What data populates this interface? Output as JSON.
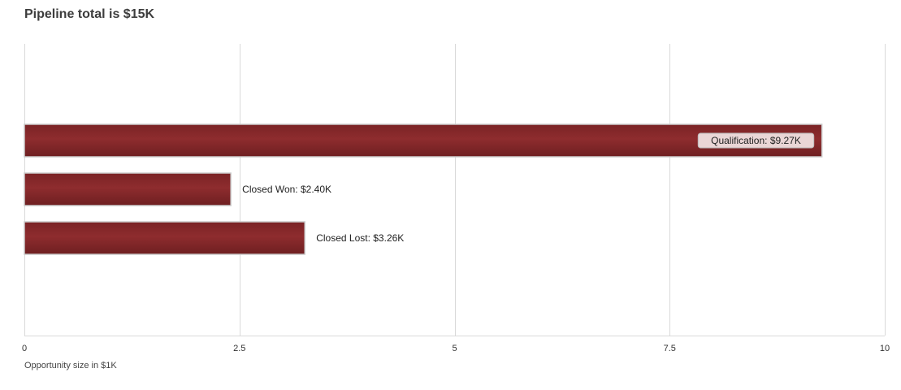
{
  "chart_data": {
    "type": "bar",
    "orientation": "horizontal",
    "title": "Pipeline total is $15K",
    "xlabel": "Opportunity size in $1K",
    "ylabel": "",
    "xlim": [
      0,
      10
    ],
    "x_ticks": [
      "0",
      "2.5",
      "5",
      "7.5",
      "10"
    ],
    "x_tick_values": [
      0,
      2.5,
      5,
      7.5,
      10
    ],
    "categories": [
      "Qualification",
      "Closed Won",
      "Closed Lost"
    ],
    "values": [
      9.27,
      2.4,
      3.26
    ],
    "data_labels": [
      "Qualification: $9.27K",
      "Closed Won: $2.40K",
      "Closed Lost: $3.26K"
    ],
    "grid": true,
    "legend": "none",
    "colors": {
      "bar": "#8b2a2c",
      "bar_border": "#cccccc",
      "grid": "#d9d9d9",
      "label_box": "#ead6d6"
    }
  }
}
